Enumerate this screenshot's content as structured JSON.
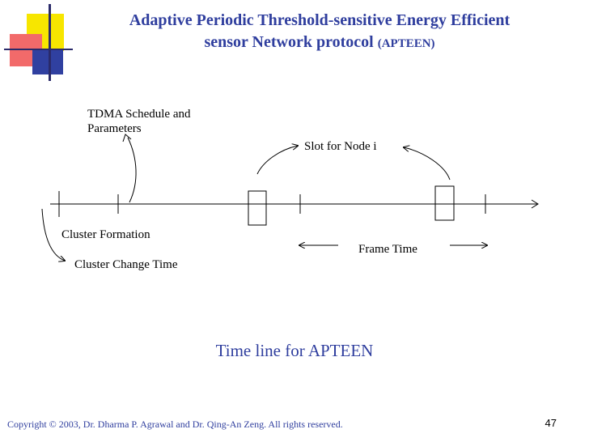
{
  "title": {
    "line1": "Adaptive Periodic Threshold-sensitive Energy Efficient",
    "line2": "sensor Network protocol",
    "acronym": "(APTEEN)"
  },
  "labels": {
    "tdma_line1": "TDMA Schedule and",
    "tdma_line2": "Parameters",
    "slot": "Slot for Node i",
    "cluster_formation": "Cluster Formation",
    "cluster_change": "Cluster Change Time",
    "frame_time": "Frame Time"
  },
  "caption": "Time line for APTEEN",
  "footer": "Copyright © 2003, Dr. Dharma P. Agrawal and Dr. Qing-An Zeng. All rights reserved.",
  "page_number": "47",
  "colors": {
    "title": "#2f3e9e",
    "deco_yellow": "#f7e600",
    "deco_red": "#f26a6a",
    "deco_blue": "#3040a0"
  }
}
